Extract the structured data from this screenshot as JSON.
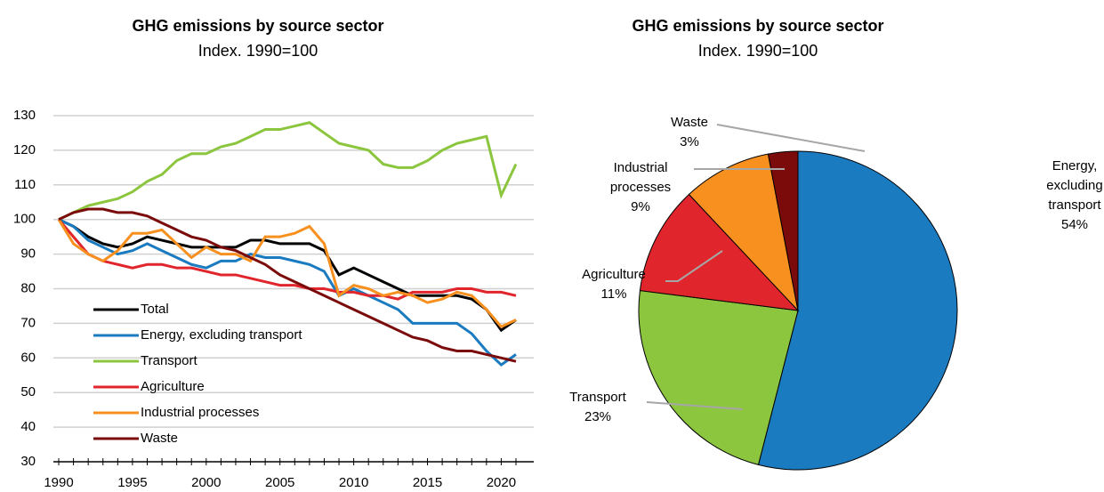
{
  "chart_data": [
    {
      "type": "line",
      "title": "GHG emissions by source sector",
      "subtitle": "Index. 1990=100",
      "x": [
        1990,
        1991,
        1992,
        1993,
        1994,
        1995,
        1996,
        1997,
        1998,
        1999,
        2000,
        2001,
        2002,
        2003,
        2004,
        2005,
        2006,
        2007,
        2008,
        2009,
        2010,
        2011,
        2012,
        2013,
        2014,
        2015,
        2016,
        2017,
        2018,
        2019,
        2020,
        2021
      ],
      "xlim": [
        1990,
        2021
      ],
      "xticks": [
        1990,
        1995,
        2000,
        2005,
        2010,
        2015,
        2020
      ],
      "ylim": [
        30,
        130
      ],
      "yticks": [
        30,
        40,
        50,
        60,
        70,
        80,
        90,
        100,
        110,
        120,
        130
      ],
      "grid": true,
      "series": [
        {
          "name": "Total",
          "color": "#000000",
          "values": [
            100,
            98,
            95,
            93,
            92,
            93,
            95,
            94,
            93,
            92,
            92,
            92,
            92,
            94,
            94,
            93,
            93,
            93,
            91,
            84,
            86,
            84,
            82,
            80,
            78,
            78,
            78,
            78,
            77,
            74,
            68,
            71
          ]
        },
        {
          "name": "Energy, excluding transport",
          "color": "#1a7bc0",
          "values": [
            100,
            98,
            94,
            92,
            90,
            91,
            93,
            91,
            89,
            87,
            86,
            88,
            88,
            90,
            89,
            89,
            88,
            87,
            85,
            78,
            80,
            78,
            76,
            74,
            70,
            70,
            70,
            70,
            67,
            62,
            58,
            61
          ]
        },
        {
          "name": "Transport",
          "color": "#8cc63f",
          "values": [
            100,
            102,
            104,
            105,
            106,
            108,
            111,
            113,
            117,
            119,
            119,
            121,
            122,
            124,
            126,
            126,
            127,
            128,
            125,
            122,
            121,
            120,
            116,
            115,
            115,
            117,
            120,
            122,
            123,
            124,
            107,
            116
          ]
        },
        {
          "name": "Agriculture",
          "color": "#e0262c",
          "values": [
            100,
            95,
            90,
            88,
            87,
            86,
            87,
            87,
            86,
            86,
            85,
            84,
            84,
            83,
            82,
            81,
            81,
            80,
            80,
            79,
            79,
            78,
            78,
            77,
            79,
            79,
            79,
            80,
            80,
            79,
            79,
            78
          ]
        },
        {
          "name": "Industrial processes",
          "color": "#f7901e",
          "values": [
            100,
            93,
            90,
            88,
            91,
            96,
            96,
            97,
            93,
            89,
            92,
            90,
            90,
            88,
            95,
            95,
            96,
            98,
            93,
            78,
            81,
            80,
            78,
            79,
            78,
            76,
            77,
            79,
            78,
            74,
            69,
            71
          ]
        },
        {
          "name": "Waste",
          "color": "#7b0b0b",
          "values": [
            100,
            102,
            103,
            103,
            102,
            102,
            101,
            99,
            97,
            95,
            94,
            92,
            91,
            89,
            87,
            84,
            82,
            80,
            78,
            76,
            74,
            72,
            70,
            68,
            66,
            65,
            63,
            62,
            62,
            61,
            60,
            59
          ]
        }
      ]
    },
    {
      "type": "pie",
      "title": "GHG emissions by source sector",
      "subtitle": "Index. 1990=100",
      "categories": [
        "Energy, excluding transport",
        "Transport",
        "Agriculture",
        "Industrial processes",
        "Waste"
      ],
      "values": [
        54,
        23,
        11,
        9,
        3
      ],
      "value_labels": [
        "54%",
        "23%",
        "11%",
        "9%",
        "3%"
      ],
      "colors": [
        "#1a7bc0",
        "#8cc63f",
        "#e0262c",
        "#f7901e",
        "#7b0b0b"
      ]
    }
  ]
}
